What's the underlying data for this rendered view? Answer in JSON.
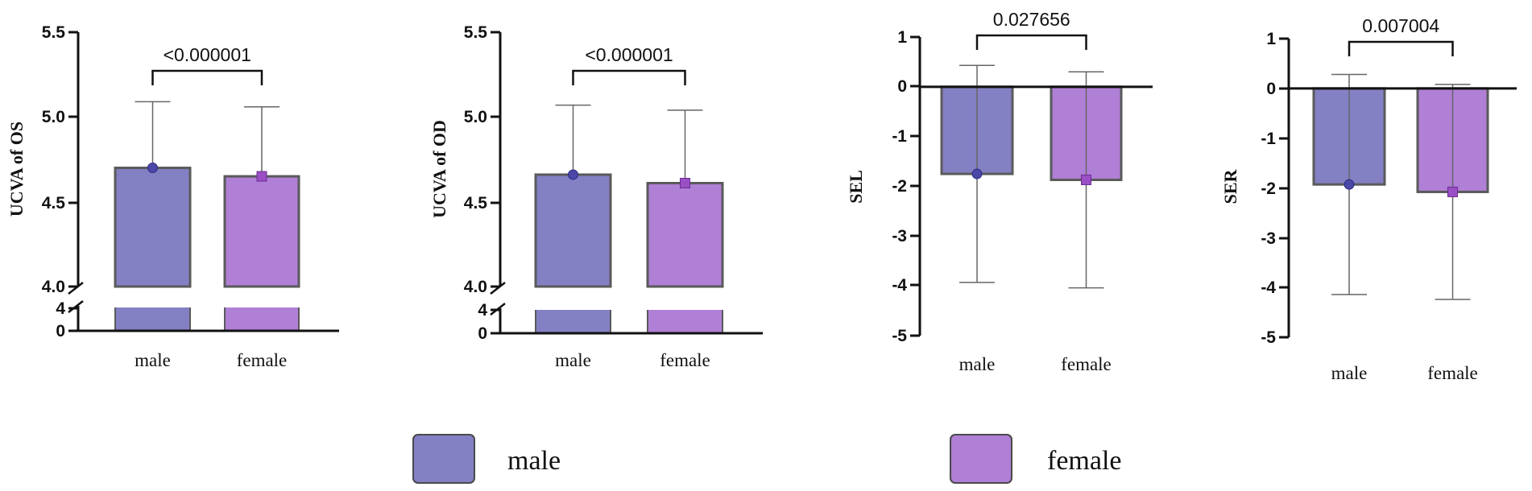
{
  "chart_data": [
    {
      "type": "bar",
      "ylabel": "UCVA of OS",
      "categories": [
        "male",
        "female"
      ],
      "values": [
        4.7,
        4.65
      ],
      "errors": [
        0.39,
        0.41
      ],
      "broken_axis": true,
      "upper_ticks": [
        "4.0",
        "4.5",
        "5.0",
        "5.5"
      ],
      "lower_ticks": [
        "0",
        "4"
      ],
      "ylim": [
        4.0,
        5.5
      ],
      "pvalue": "<0.000001"
    },
    {
      "type": "bar",
      "ylabel": "UCVA of OD",
      "categories": [
        "male",
        "female"
      ],
      "values": [
        4.66,
        4.61
      ],
      "errors": [
        0.41,
        0.43
      ],
      "broken_axis": true,
      "upper_ticks": [
        "4.0",
        "4.5",
        "5.0",
        "5.5"
      ],
      "lower_ticks": [
        "0",
        "4"
      ],
      "ylim": [
        4.0,
        5.5
      ],
      "pvalue": "<0.000001"
    },
    {
      "type": "bar",
      "ylabel": "SEL",
      "categories": [
        "male",
        "female"
      ],
      "values": [
        -1.75,
        -1.87
      ],
      "errors": [
        2.18,
        2.17
      ],
      "broken_axis": false,
      "ticks": [
        "-5",
        "-4",
        "-3",
        "-2",
        "-1",
        "0",
        "1"
      ],
      "ylim": [
        -5,
        1
      ],
      "pvalue": "0.027656"
    },
    {
      "type": "bar",
      "ylabel": "SER",
      "categories": [
        "male",
        "female"
      ],
      "values": [
        -1.93,
        -2.08
      ],
      "errors": [
        2.21,
        2.16
      ],
      "broken_axis": false,
      "ticks": [
        "-5",
        "-4",
        "-3",
        "-2",
        "-1",
        "0",
        "1"
      ],
      "ylim": [
        -5,
        1
      ],
      "pvalue": "0.007004"
    }
  ],
  "colors": {
    "male": "#8480c4",
    "female": "#b07fd6",
    "bar_edge": "#5a5a5a",
    "axis": "#111111"
  },
  "legend": {
    "items": [
      "male",
      "female"
    ]
  }
}
